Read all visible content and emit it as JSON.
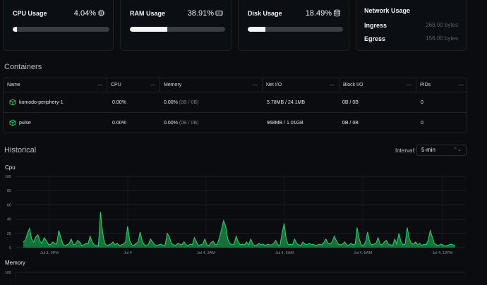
{
  "cards": {
    "cpu": {
      "title": "CPU Usage",
      "value": "4.04%",
      "percent": 4.04,
      "icon": "cpu-chip-icon"
    },
    "ram": {
      "title": "RAM Usage",
      "value": "38.91%",
      "percent": 38.91,
      "icon": "memory-stick-icon"
    },
    "disk": {
      "title": "Disk Usage",
      "value": "18.49%",
      "percent": 18.49,
      "icon": "database-icon"
    },
    "network": {
      "title": "Network Usage",
      "ingress_label": "Ingress",
      "ingress_value": "268.00 bytes",
      "egress_label": "Egress",
      "egress_value": "156.00 bytes"
    }
  },
  "containers": {
    "title": "Containers",
    "columns": [
      "Name",
      "CPU",
      "Memory",
      "Net I/O",
      "Block I/O",
      "PIDs"
    ],
    "rows": [
      {
        "name": "komodo-periphery-1",
        "cpu": "0.00%",
        "mem": "0.00%",
        "mem_detail": "(0B / 0B)",
        "net": "5.78MB / 24.1MB",
        "block": "0B / 0B",
        "pids": "0"
      },
      {
        "name": "pulse",
        "cpu": "0.00%",
        "mem": "0.00%",
        "mem_detail": "(0B / 0B)",
        "net": "968MB / 1.01GB",
        "block": "0B / 0B",
        "pids": "0"
      }
    ]
  },
  "historical": {
    "title": "Historical",
    "interval_label": "Interval:",
    "interval_value": "5-min"
  },
  "chart_data": [
    {
      "type": "area",
      "title": "Cpu",
      "color": "#22c55e",
      "ylim": [
        0,
        100
      ],
      "y_ticks": [
        "100",
        "80",
        "60",
        "40",
        "20",
        "0"
      ],
      "x_tick_labels": [
        "Jul 3, 9PM",
        "Jul 4",
        "Jul 4, 3AM",
        "Jul 4, 6AM",
        "Jul 4, 9AM",
        "Jul 4, 12PM"
      ],
      "values": [
        8,
        10,
        20,
        27,
        12,
        8,
        15,
        18,
        9,
        6,
        14,
        10,
        5,
        4,
        8,
        6,
        5,
        24,
        14,
        5,
        3,
        4,
        6,
        12,
        4,
        5,
        10,
        8,
        3,
        4,
        6,
        5,
        16,
        8,
        4,
        3,
        2,
        50,
        22,
        6,
        3,
        4,
        5,
        8,
        4,
        6,
        3,
        4,
        5,
        8,
        30,
        10,
        4,
        3,
        6,
        8,
        22,
        9,
        4,
        3,
        5,
        12,
        8,
        4,
        3,
        4,
        5,
        3,
        4,
        20,
        15,
        6,
        4,
        3,
        6,
        5,
        4,
        8,
        4,
        3,
        5,
        4,
        14,
        8,
        3,
        4,
        5,
        12,
        4,
        3,
        7,
        9,
        4,
        5,
        14,
        26,
        38,
        30,
        12,
        6,
        4,
        5,
        16,
        8,
        4,
        5,
        4,
        8,
        4,
        12,
        5,
        3,
        4,
        6,
        4,
        5,
        3,
        5,
        4,
        4,
        6,
        10,
        4,
        3,
        20,
        34,
        12,
        4,
        5,
        4,
        12,
        6,
        4,
        3,
        8,
        5,
        4,
        6,
        4,
        5,
        3,
        4,
        5,
        4,
        7,
        12,
        6,
        5,
        8,
        16,
        10,
        5,
        4,
        5,
        8,
        4,
        3,
        6,
        4,
        5,
        28,
        12,
        4,
        3,
        8,
        22,
        8,
        4,
        5,
        6,
        14,
        5,
        4,
        8,
        10,
        5,
        4,
        3,
        12,
        5,
        20,
        8,
        4,
        5,
        28,
        12,
        6,
        5,
        8,
        4,
        6,
        3,
        5,
        4,
        10,
        24,
        15,
        6,
        4,
        3,
        5,
        4,
        2,
        3,
        4,
        5,
        4,
        2
      ],
      "y_tick_values": [
        100,
        80,
        60,
        40,
        20,
        0
      ]
    },
    {
      "type": "area",
      "title": "Memory",
      "y_ticks": [
        "100"
      ]
    }
  ]
}
